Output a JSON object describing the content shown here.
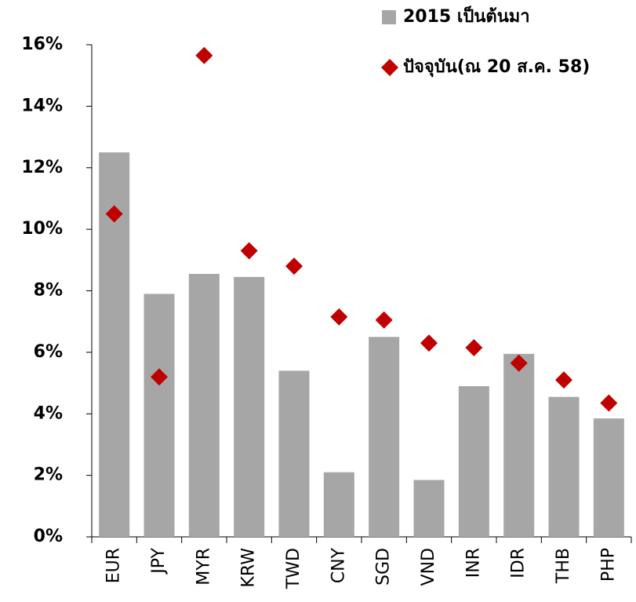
{
  "chart_data": {
    "type": "bar_scatter",
    "categories": [
      "EUR",
      "JPY",
      "MYR",
      "KRW",
      "TWD",
      "CNY",
      "SGD",
      "VND",
      "INR",
      "IDR",
      "THB",
      "PHP"
    ],
    "series": [
      {
        "name": "2015 เป็นต้นมา",
        "type": "bar",
        "color": "#a6a6a6",
        "values": [
          12.5,
          7.9,
          8.55,
          8.45,
          5.4,
          2.1,
          6.5,
          1.85,
          4.9,
          5.95,
          4.55,
          3.85
        ]
      },
      {
        "name": "ปัจจุบัน(ณ 20 ส.ค. 58)",
        "type": "scatter",
        "color": "#c00000",
        "values": [
          10.5,
          5.2,
          15.65,
          9.3,
          8.8,
          7.15,
          7.05,
          6.3,
          6.15,
          5.65,
          5.1,
          4.35
        ]
      }
    ],
    "ylim": [
      0,
      16
    ],
    "yticks": [
      {
        "value": 0,
        "label": "0%"
      },
      {
        "value": 2,
        "label": "2%"
      },
      {
        "value": 4,
        "label": "4%"
      },
      {
        "value": 6,
        "label": "6%"
      },
      {
        "value": 8,
        "label": "8%"
      },
      {
        "value": 10,
        "label": "10%"
      },
      {
        "value": 12,
        "label": "12%"
      },
      {
        "value": 14,
        "label": "14%"
      },
      {
        "value": 16,
        "label": "16%"
      }
    ],
    "legend": "top-right"
  }
}
